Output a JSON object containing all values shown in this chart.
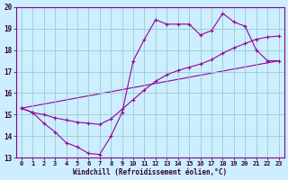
{
  "xlabel": "Windchill (Refroidissement éolien,°C)",
  "xlim": [
    -0.5,
    23.5
  ],
  "ylim": [
    13,
    20
  ],
  "xticks": [
    0,
    1,
    2,
    3,
    4,
    5,
    6,
    7,
    8,
    9,
    10,
    11,
    12,
    13,
    14,
    15,
    16,
    17,
    18,
    19,
    20,
    21,
    22,
    23
  ],
  "yticks": [
    13,
    14,
    15,
    16,
    17,
    18,
    19,
    20
  ],
  "background_color": "#cceeff",
  "line_color": "#990099",
  "grid_color": "#99cccc",
  "series": {
    "line1_x": [
      0,
      1,
      2,
      3,
      4,
      5,
      6,
      7,
      8,
      9,
      10,
      11,
      12,
      13,
      14,
      15,
      16,
      17,
      18,
      19,
      20,
      21,
      22,
      23
    ],
    "line1_y": [
      15.3,
      15.1,
      14.6,
      14.2,
      13.7,
      13.5,
      13.2,
      13.15,
      14.0,
      15.1,
      17.5,
      18.5,
      19.4,
      19.2,
      19.2,
      19.2,
      18.7,
      18.9,
      19.7,
      19.3,
      19.1,
      18.0,
      17.5,
      17.5
    ],
    "line2_x": [
      0,
      1,
      2,
      3,
      4,
      5,
      6,
      7,
      8,
      9,
      10,
      11,
      12,
      13,
      14,
      15,
      16,
      17,
      18,
      19,
      20,
      21,
      22,
      23
    ],
    "line2_y": [
      15.3,
      15.1,
      15.0,
      14.85,
      14.75,
      14.65,
      14.6,
      14.55,
      14.8,
      15.25,
      15.7,
      16.15,
      16.55,
      16.85,
      17.05,
      17.2,
      17.35,
      17.55,
      17.85,
      18.1,
      18.3,
      18.5,
      18.6,
      18.65
    ],
    "line3_x": [
      0,
      23
    ],
    "line3_y": [
      15.3,
      17.5
    ]
  }
}
